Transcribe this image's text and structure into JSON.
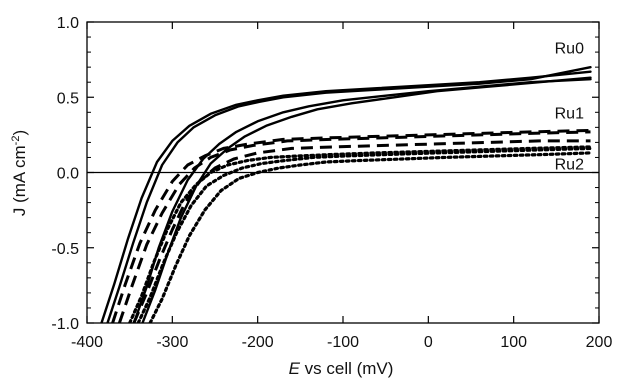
{
  "chart_data": {
    "type": "line",
    "title": "",
    "xlabel_italic": "E",
    "xlabel_rest": " vs cell (mV)",
    "ylabel_main": "J (mA cm",
    "ylabel_sup": "-2",
    "ylabel_end": ")",
    "xlim": [
      -400,
      200
    ],
    "ylim": [
      -1.0,
      1.0
    ],
    "xticks": [
      -400,
      -300,
      -200,
      -100,
      0,
      100,
      200
    ],
    "yticks": [
      -1.0,
      -0.5,
      0.0,
      0.5,
      1.0
    ],
    "xtick_labels": [
      "-400",
      "-300",
      "-200",
      "-100",
      "0",
      "100",
      "200"
    ],
    "ytick_labels": [
      "-1.0",
      "-0.5",
      "0.0",
      "0.5",
      "1.0"
    ],
    "zero_line": 0.0,
    "series": [
      {
        "name": "Ru0",
        "style": "solid",
        "color": "#000000",
        "curves": [
          {
            "x": [
              -383,
              -368,
              -352,
              -336,
              -318,
              -300,
              -280,
              -255,
              -225,
              -200,
              -170,
              -120,
              -60,
              0,
              60,
              120,
              190
            ],
            "y": [
              -1.0,
              -0.74,
              -0.44,
              -0.17,
              0.07,
              0.21,
              0.31,
              0.39,
              0.45,
              0.48,
              0.51,
              0.54,
              0.56,
              0.58,
              0.6,
              0.63,
              0.67
            ]
          },
          {
            "x": [
              -376,
              -362,
              -346,
              -330,
              -312,
              -294,
              -275,
              -250,
              -222,
              -198,
              -170,
              -120,
              -60,
              0,
              60,
              120,
              190
            ],
            "y": [
              -1.0,
              -0.76,
              -0.47,
              -0.2,
              0.05,
              0.2,
              0.3,
              0.38,
              0.44,
              0.47,
              0.5,
              0.53,
              0.55,
              0.57,
              0.59,
              0.62,
              0.7
            ]
          },
          {
            "x": [
              -345,
              -330,
              -316,
              -300,
              -282,
              -264,
              -245,
              -225,
              -200,
              -170,
              -140,
              -100,
              -50,
              0,
              60,
              120,
              190
            ],
            "y": [
              -1.0,
              -0.76,
              -0.5,
              -0.26,
              -0.05,
              0.09,
              0.19,
              0.27,
              0.34,
              0.4,
              0.44,
              0.48,
              0.51,
              0.54,
              0.57,
              0.6,
              0.62
            ]
          },
          {
            "x": [
              -335,
              -320,
              -305,
              -290,
              -272,
              -255,
              -235,
              -215,
              -190,
              -160,
              -130,
              -90,
              -40,
              10,
              70,
              130,
              190
            ],
            "y": [
              -1.0,
              -0.78,
              -0.53,
              -0.3,
              -0.09,
              0.06,
              0.16,
              0.24,
              0.31,
              0.37,
              0.42,
              0.46,
              0.5,
              0.54,
              0.57,
              0.6,
              0.63
            ]
          }
        ]
      },
      {
        "name": "Ru1",
        "style": "dashed",
        "color": "#000000",
        "curves": [
          {
            "x": [
              -370,
              -355,
              -338,
              -320,
              -300,
              -282,
              -262,
              -240,
              -210,
              -170,
              -120,
              -60,
              0,
              60,
              120,
              190
            ],
            "y": [
              -1.0,
              -0.74,
              -0.47,
              -0.25,
              -0.06,
              0.05,
              0.11,
              0.16,
              0.19,
              0.22,
              0.23,
              0.24,
              0.25,
              0.26,
              0.27,
              0.28
            ]
          },
          {
            "x": [
              -362,
              -347,
              -330,
              -312,
              -292,
              -274,
              -255,
              -232,
              -205,
              -165,
              -115,
              -55,
              0,
              60,
              120,
              190
            ],
            "y": [
              -1.0,
              -0.75,
              -0.48,
              -0.27,
              -0.08,
              0.03,
              0.1,
              0.15,
              0.18,
              0.21,
              0.22,
              0.23,
              0.24,
              0.25,
              0.26,
              0.27
            ]
          },
          {
            "x": [
              -345,
              -330,
              -315,
              -300,
              -285,
              -268,
              -250,
              -228,
              -200,
              -160,
              -110,
              -50,
              10,
              70,
              130,
              190
            ],
            "y": [
              -1.0,
              -0.8,
              -0.58,
              -0.38,
              -0.2,
              -0.06,
              0.03,
              0.09,
              0.13,
              0.16,
              0.17,
              0.18,
              0.19,
              0.2,
              0.21,
              0.21
            ]
          }
        ]
      },
      {
        "name": "Ru2",
        "style": "dotted",
        "color": "#000000",
        "curves": [
          {
            "x": [
              -350,
              -336,
              -322,
              -306,
              -290,
              -272,
              -255,
              -235,
              -212,
              -185,
              -150,
              -110,
              -60,
              0,
              60,
              120,
              190
            ],
            "y": [
              -1.0,
              -0.82,
              -0.6,
              -0.38,
              -0.2,
              -0.08,
              0.0,
              0.05,
              0.08,
              0.1,
              0.11,
              0.12,
              0.13,
              0.14,
              0.15,
              0.16,
              0.17
            ]
          },
          {
            "x": [
              -340,
              -326,
              -311,
              -295,
              -278,
              -260,
              -240,
              -218,
              -195,
              -168,
              -135,
              -95,
              -45,
              10,
              70,
              130,
              190
            ],
            "y": [
              -1.0,
              -0.83,
              -0.61,
              -0.4,
              -0.22,
              -0.09,
              -0.02,
              0.03,
              0.06,
              0.08,
              0.1,
              0.11,
              0.12,
              0.13,
              0.14,
              0.15,
              0.16
            ]
          },
          {
            "x": [
              -326,
              -312,
              -296,
              -280,
              -262,
              -243,
              -222,
              -200,
              -175,
              -150,
              -120,
              -80,
              -30,
              20,
              80,
              140,
              190
            ],
            "y": [
              -1.0,
              -0.84,
              -0.62,
              -0.42,
              -0.25,
              -0.12,
              -0.04,
              0.0,
              0.03,
              0.05,
              0.07,
              0.08,
              0.09,
              0.1,
              0.11,
              0.12,
              0.13
            ]
          }
        ]
      }
    ],
    "annotations": [
      {
        "text": "Ru0",
        "x": 148,
        "y": 0.79
      },
      {
        "text": "Ru1",
        "x": 148,
        "y": 0.36
      },
      {
        "text": "Ru2",
        "x": 148,
        "y": 0.02
      }
    ]
  }
}
